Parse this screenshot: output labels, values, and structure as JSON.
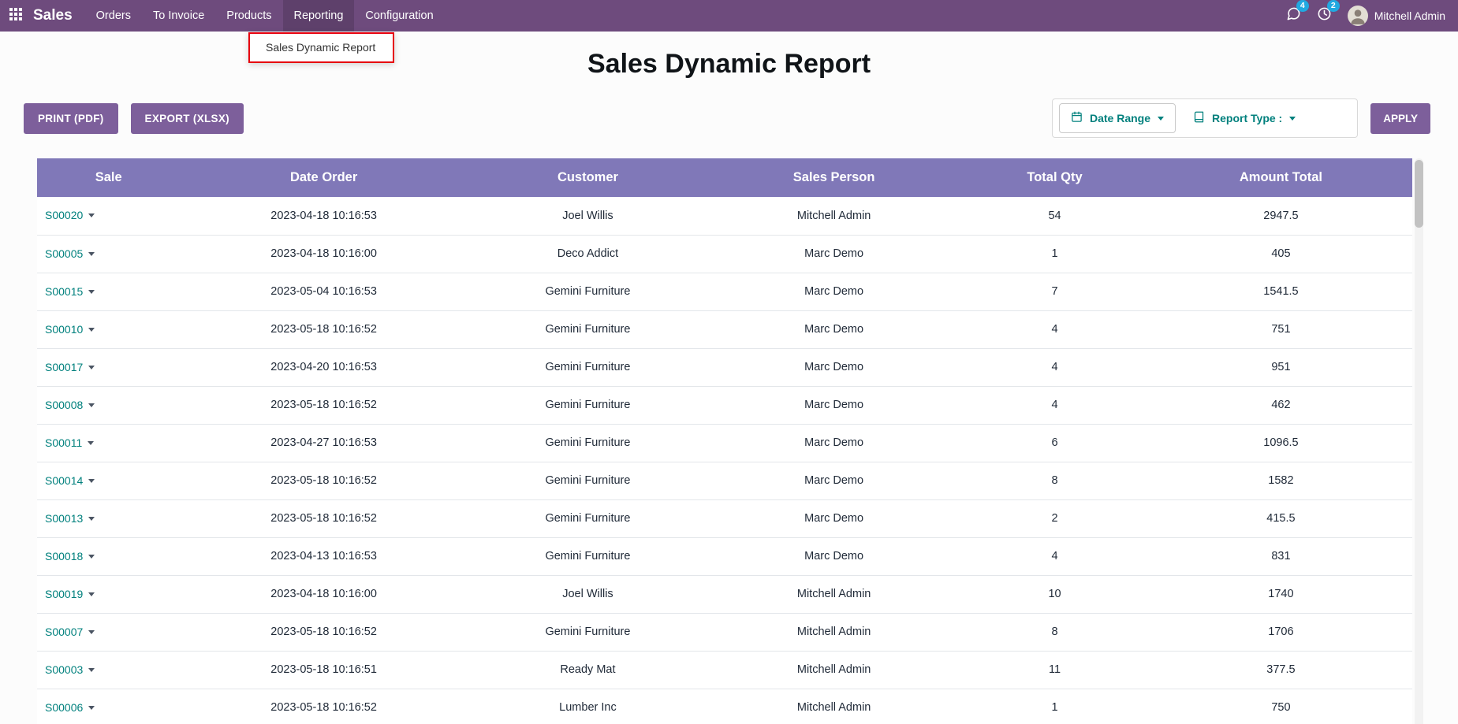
{
  "topbar": {
    "brand": "Sales",
    "menus": [
      {
        "label": "Orders"
      },
      {
        "label": "To Invoice"
      },
      {
        "label": "Products"
      },
      {
        "label": "Reporting"
      },
      {
        "label": "Configuration"
      }
    ],
    "messages_badge": "4",
    "activities_badge": "2",
    "user_name": "Mitchell Admin"
  },
  "reporting_menu": {
    "open_item": "Sales Dynamic Report",
    "highlight_color": "#e6000e"
  },
  "page": {
    "title": "Sales Dynamic Report"
  },
  "toolbar": {
    "print_label": "PRINT (PDF)",
    "export_label": "EXPORT (XLSX)",
    "date_range_label": "Date Range",
    "report_type_label": "Report Type :",
    "apply_label": "APPLY"
  },
  "table": {
    "columns": [
      "Sale",
      "Date Order",
      "Customer",
      "Sales Person",
      "Total Qty",
      "Amount Total"
    ],
    "rows": [
      [
        "S00020",
        "2023-04-18 10:16:53",
        "Joel Willis",
        "Mitchell Admin",
        "54",
        "2947.5"
      ],
      [
        "S00005",
        "2023-04-18 10:16:00",
        "Deco Addict",
        "Marc Demo",
        "1",
        "405"
      ],
      [
        "S00015",
        "2023-05-04 10:16:53",
        "Gemini Furniture",
        "Marc Demo",
        "7",
        "1541.5"
      ],
      [
        "S00010",
        "2023-05-18 10:16:52",
        "Gemini Furniture",
        "Marc Demo",
        "4",
        "751"
      ],
      [
        "S00017",
        "2023-04-20 10:16:53",
        "Gemini Furniture",
        "Marc Demo",
        "4",
        "951"
      ],
      [
        "S00008",
        "2023-05-18 10:16:52",
        "Gemini Furniture",
        "Marc Demo",
        "4",
        "462"
      ],
      [
        "S00011",
        "2023-04-27 10:16:53",
        "Gemini Furniture",
        "Marc Demo",
        "6",
        "1096.5"
      ],
      [
        "S00014",
        "2023-05-18 10:16:52",
        "Gemini Furniture",
        "Marc Demo",
        "8",
        "1582"
      ],
      [
        "S00013",
        "2023-05-18 10:16:52",
        "Gemini Furniture",
        "Marc Demo",
        "2",
        "415.5"
      ],
      [
        "S00018",
        "2023-04-13 10:16:53",
        "Gemini Furniture",
        "Marc Demo",
        "4",
        "831"
      ],
      [
        "S00019",
        "2023-04-18 10:16:00",
        "Joel Willis",
        "Mitchell Admin",
        "10",
        "1740"
      ],
      [
        "S00007",
        "2023-05-18 10:16:52",
        "Gemini Furniture",
        "Mitchell Admin",
        "8",
        "1706"
      ],
      [
        "S00003",
        "2023-05-18 10:16:51",
        "Ready Mat",
        "Mitchell Admin",
        "11",
        "377.5"
      ],
      [
        "S00006",
        "2023-05-18 10:16:52",
        "Lumber Inc",
        "Mitchell Admin",
        "1",
        "750"
      ]
    ]
  },
  "colors": {
    "navbar": "#6e4b7d",
    "button": "#7d5f9b",
    "table_header": "#8078b8",
    "link_teal": "#00807d",
    "badge_blue": "#21a9e1",
    "annotation_red": "#e6000e"
  }
}
